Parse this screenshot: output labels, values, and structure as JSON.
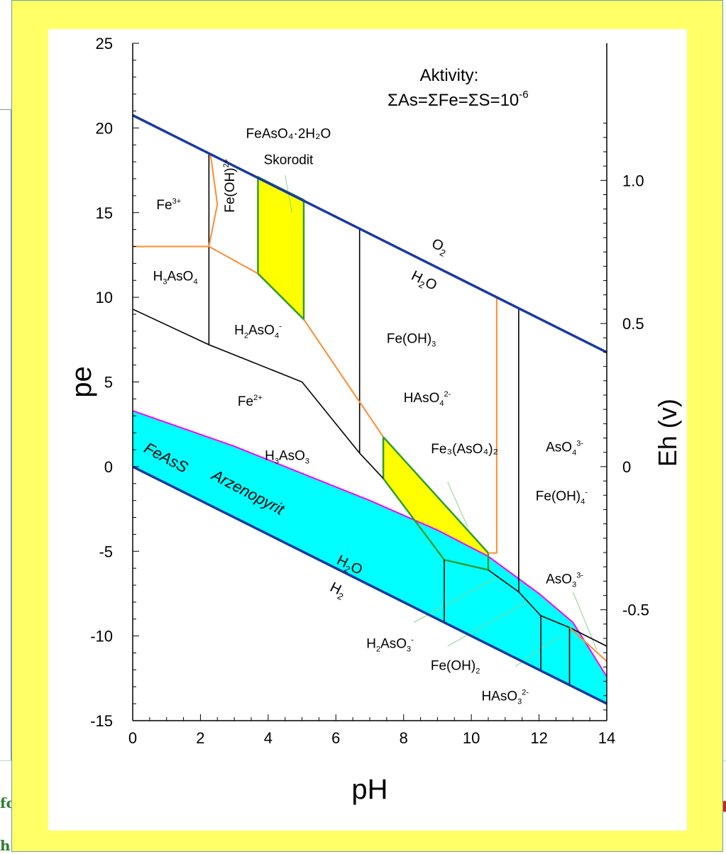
{
  "background_fragments": [
    "fo",
    "h"
  ],
  "chart_data": {
    "type": "pourbaix",
    "title": "",
    "xlabel": "pH",
    "ylabel": "pe",
    "y2label": "Eh (v)",
    "xlim": [
      0,
      14
    ],
    "ylim": [
      -15,
      25
    ],
    "x_ticks": [
      "0",
      "2",
      "4",
      "6",
      "8",
      "10",
      "12",
      "14"
    ],
    "y_ticks": [
      "-15",
      "-10",
      "-5",
      "0",
      "5",
      "10",
      "15",
      "20",
      "25"
    ],
    "y2_ticks": [
      {
        "label": "1.0",
        "eh": 1.0
      },
      {
        "label": "0.5",
        "eh": 0.5
      },
      {
        "label": "0",
        "eh": 0
      },
      {
        "label": "-0.5",
        "eh": -0.5
      }
    ],
    "activity": {
      "heading": "Aktivity:",
      "value": "ΣAs=ΣFe=ΣS=10",
      "exponent": "-6"
    },
    "water_lines": {
      "upper": {
        "points": [
          [
            0,
            20.75
          ],
          [
            14,
            6.75
          ]
        ],
        "labels": [
          "O",
          "2",
          "H",
          "2",
          "O"
        ]
      },
      "lower": {
        "points": [
          [
            0,
            0
          ],
          [
            14,
            -14
          ]
        ],
        "labels": [
          "H",
          "2",
          "O",
          "H",
          "2"
        ]
      }
    },
    "regions": [
      {
        "name": "skorodit",
        "formula": "FeAsO₄·2H₂O",
        "mineral": "Skorodit",
        "fill": "#ffff00",
        "edge": "#2e9e2e",
        "polygon": [
          [
            3.7,
            17.1
          ],
          [
            5.05,
            15.75
          ],
          [
            5.05,
            8.7
          ],
          [
            3.7,
            11.4
          ]
        ]
      },
      {
        "name": "fe3aso42",
        "formula": "Fe₃(AsO₄)₂",
        "fill": "#ffff00",
        "edge": "#2e9e2e",
        "polygon": [
          [
            7.4,
            1.75
          ],
          [
            10.5,
            -5.1
          ],
          [
            10.5,
            -6.1
          ],
          [
            9.2,
            -5.5
          ],
          [
            7.4,
            -0.7
          ]
        ]
      },
      {
        "name": "arzenopyrit",
        "formula": "FeAsS",
        "mineral": "Arzenopyrit",
        "fill": "#00ffff",
        "edge": "#ff00ff",
        "polygon": [
          [
            0,
            3.3
          ],
          [
            3,
            1.2
          ],
          [
            7,
            -2
          ],
          [
            9,
            -3.75
          ],
          [
            10.5,
            -5.3
          ],
          [
            12,
            -7.5
          ],
          [
            13,
            -9.2
          ],
          [
            14,
            -12.4
          ],
          [
            14,
            -14
          ],
          [
            0,
            0
          ]
        ]
      }
    ],
    "boundaries_black": [
      [
        [
          0,
          9.3
        ],
        [
          2.25,
          7.2
        ],
        [
          5,
          5.0
        ],
        [
          6.7,
          0.8
        ],
        [
          7.4,
          -0.7
        ]
      ],
      [
        [
          10.5,
          -6.1
        ],
        [
          11.4,
          -7.4
        ],
        [
          12.05,
          -8.8
        ],
        [
          12.9,
          -9.5
        ],
        [
          14,
          -10.6
        ]
      ],
      [
        [
          2.25,
          18.5
        ],
        [
          2.25,
          7.2
        ]
      ],
      [
        [
          6.7,
          14.1
        ],
        [
          6.7,
          0.8
        ]
      ],
      [
        [
          11.4,
          9.4
        ],
        [
          11.4,
          -7.4
        ]
      ],
      [
        [
          9.2,
          -5.5
        ],
        [
          9.2,
          -9.2
        ]
      ],
      [
        [
          12.05,
          -8.8
        ],
        [
          12.05,
          -12.05
        ]
      ],
      [
        [
          12.9,
          -9.5
        ],
        [
          12.9,
          -12.9
        ]
      ]
    ],
    "boundaries_orange": [
      [
        [
          0,
          13.0
        ],
        [
          2.25,
          13.0
        ],
        [
          3.7,
          11.4
        ]
      ],
      [
        [
          2.25,
          13.0
        ],
        [
          2.5,
          15.5
        ],
        [
          2.3,
          18.4
        ]
      ],
      [
        [
          5.05,
          8.7
        ],
        [
          7.4,
          1.75
        ]
      ],
      [
        [
          10.5,
          -5.1
        ],
        [
          10.75,
          -5.1
        ],
        [
          10.75,
          10.0
        ]
      ],
      [
        [
          12.9,
          -9.5
        ],
        [
          14,
          -11.5
        ]
      ]
    ],
    "species": [
      {
        "name": "fe3",
        "base": "Fe",
        "sup": "3+",
        "x": 0.7,
        "y": 15.2
      },
      {
        "name": "feoh2",
        "base": "Fe(OH)",
        "sup": "2+",
        "x": 3.0,
        "y": 15.0,
        "rotate": -90
      },
      {
        "name": "h3aso4",
        "base": "H",
        "sub": "3",
        "tail": "AsO",
        "sub2": "4",
        "x": 0.6,
        "y": 11.0
      },
      {
        "name": "h2aso4",
        "base": "H",
        "sub": "2",
        "tail": "AsO",
        "sub2": "4",
        "sup2": "-",
        "x": 3.0,
        "y": 7.8
      },
      {
        "name": "feoh3",
        "base": "Fe(OH)",
        "sub": "3",
        "x": 7.5,
        "y": 7.3
      },
      {
        "name": "haso4",
        "base": "HAsO",
        "sub": "4",
        "sup": "2-",
        "x": 8.0,
        "y": 3.8
      },
      {
        "name": "fe2",
        "base": "Fe",
        "sup": "2+",
        "x": 3.1,
        "y": 3.6
      },
      {
        "name": "h3aso3",
        "base": "H",
        "sub": "3",
        "tail": "AsO",
        "sub2": "3",
        "x": 3.9,
        "y": 0.4
      },
      {
        "name": "aso4",
        "base": "AsO",
        "sub": "4",
        "sup": "3-",
        "x": 12.2,
        "y": 0.9
      },
      {
        "name": "feoh4",
        "base": "Fe(OH)",
        "sub": "4",
        "sup": "-",
        "x": 11.9,
        "y": -2.0
      },
      {
        "name": "aso3",
        "base": "AsO",
        "sub": "3",
        "sup": "3-",
        "x": 12.2,
        "y": -6.9
      },
      {
        "name": "h2aso3",
        "base": "H",
        "sub": "2",
        "tail": "AsO",
        "sub2": "3",
        "sup2": "-",
        "x": 6.9,
        "y": -10.7
      },
      {
        "name": "feoh2aq",
        "base": "Fe(OH)",
        "sub": "2",
        "x": 8.8,
        "y": -12.0
      },
      {
        "name": "haso3",
        "base": "HAsO",
        "sub": "3",
        "sup": "2-",
        "x": 10.3,
        "y": -13.8
      }
    ],
    "leaders": [
      [
        [
          4.5,
          17.2
        ],
        [
          4.7,
          15.0
        ]
      ],
      [
        [
          9.3,
          -0.9
        ],
        [
          9.9,
          -3.6
        ]
      ],
      [
        [
          8.3,
          -9.2
        ],
        [
          10.8,
          -6.5
        ]
      ],
      [
        [
          9.3,
          -10.6
        ],
        [
          11.8,
          -7.8
        ]
      ],
      [
        [
          11.3,
          -11.8
        ],
        [
          12.6,
          -10.0
        ]
      ],
      [
        [
          13.0,
          -7.4
        ],
        [
          13.7,
          -10.8
        ]
      ]
    ]
  }
}
